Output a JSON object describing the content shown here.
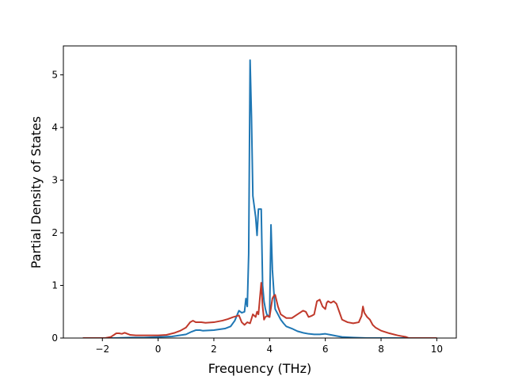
{
  "chart_data": {
    "type": "line",
    "title": "",
    "xlabel": "Frequency (THz)",
    "ylabel": "Partial Density of States",
    "xlim": [
      -3.4,
      10.7
    ],
    "ylim": [
      0,
      5.55
    ],
    "xticks": [
      -2,
      0,
      2,
      4,
      6,
      8,
      10
    ],
    "xtick_labels": [
      "−2",
      "0",
      "2",
      "4",
      "6",
      "8",
      "10"
    ],
    "yticks": [
      0,
      1,
      2,
      3,
      4,
      5
    ],
    "ytick_labels": [
      "0",
      "1",
      "2",
      "3",
      "4",
      "5"
    ],
    "grid": false,
    "legend": "none",
    "series": [
      {
        "color": "#1f77b4",
        "x": [
          -2.7,
          -1.6,
          -1.0,
          -0.5,
          0.0,
          0.5,
          1.0,
          1.2,
          1.35,
          1.5,
          1.6,
          2.0,
          2.4,
          2.6,
          2.75,
          2.9,
          3.0,
          3.1,
          3.15,
          3.2,
          3.25,
          3.3,
          3.35,
          3.4,
          3.45,
          3.5,
          3.55,
          3.6,
          3.65,
          3.7,
          3.75,
          3.8,
          3.85,
          3.9,
          4.0,
          4.05,
          4.1,
          4.15,
          4.2,
          4.3,
          4.4,
          4.5,
          4.6,
          4.8,
          5.0,
          5.2,
          5.4,
          5.6,
          5.8,
          6.0,
          6.2,
          6.4,
          6.6,
          7.0,
          7.5,
          8.0,
          9.0,
          10.0
        ],
        "y": [
          0.0,
          0.0,
          0.01,
          0.01,
          0.02,
          0.03,
          0.07,
          0.12,
          0.15,
          0.15,
          0.14,
          0.15,
          0.18,
          0.22,
          0.33,
          0.52,
          0.48,
          0.5,
          0.75,
          0.6,
          1.6,
          5.28,
          4.2,
          2.7,
          2.5,
          2.3,
          1.95,
          2.45,
          2.45,
          2.45,
          1.0,
          0.7,
          0.55,
          0.45,
          0.4,
          2.15,
          1.3,
          0.9,
          0.55,
          0.45,
          0.35,
          0.28,
          0.22,
          0.18,
          0.13,
          0.1,
          0.08,
          0.07,
          0.07,
          0.08,
          0.06,
          0.04,
          0.02,
          0.01,
          0.0,
          0.0,
          0.0,
          0.0
        ]
      },
      {
        "color": "#c0392b",
        "x": [
          -2.7,
          -1.9,
          -1.7,
          -1.5,
          -1.4,
          -1.3,
          -1.2,
          -1.1,
          -1.0,
          -0.8,
          -0.5,
          0.0,
          0.3,
          0.6,
          0.8,
          1.0,
          1.15,
          1.25,
          1.35,
          1.45,
          1.55,
          1.7,
          2.0,
          2.3,
          2.5,
          2.7,
          2.9,
          3.0,
          3.1,
          3.2,
          3.3,
          3.4,
          3.5,
          3.55,
          3.6,
          3.65,
          3.7,
          3.75,
          3.8,
          3.85,
          3.9,
          4.0,
          4.1,
          4.15,
          4.2,
          4.3,
          4.4,
          4.6,
          4.8,
          5.0,
          5.2,
          5.3,
          5.4,
          5.5,
          5.6,
          5.7,
          5.8,
          5.9,
          6.0,
          6.05,
          6.1,
          6.2,
          6.3,
          6.4,
          6.5,
          6.6,
          6.8,
          7.0,
          7.2,
          7.3,
          7.35,
          7.4,
          7.5,
          7.6,
          7.7,
          7.8,
          8.0,
          8.3,
          8.6,
          8.9,
          9.0,
          10.0
        ],
        "y": [
          0.0,
          0.0,
          0.02,
          0.09,
          0.09,
          0.08,
          0.1,
          0.08,
          0.06,
          0.05,
          0.05,
          0.05,
          0.06,
          0.1,
          0.14,
          0.2,
          0.3,
          0.33,
          0.3,
          0.3,
          0.3,
          0.29,
          0.3,
          0.33,
          0.36,
          0.4,
          0.43,
          0.3,
          0.25,
          0.3,
          0.28,
          0.45,
          0.4,
          0.5,
          0.45,
          0.75,
          1.05,
          0.6,
          0.35,
          0.4,
          0.42,
          0.4,
          0.75,
          0.8,
          0.82,
          0.6,
          0.45,
          0.38,
          0.38,
          0.45,
          0.52,
          0.5,
          0.4,
          0.42,
          0.45,
          0.7,
          0.73,
          0.6,
          0.55,
          0.67,
          0.7,
          0.67,
          0.7,
          0.65,
          0.5,
          0.35,
          0.3,
          0.28,
          0.3,
          0.42,
          0.6,
          0.48,
          0.4,
          0.35,
          0.25,
          0.2,
          0.14,
          0.09,
          0.05,
          0.02,
          0.0,
          0.0
        ]
      }
    ]
  }
}
